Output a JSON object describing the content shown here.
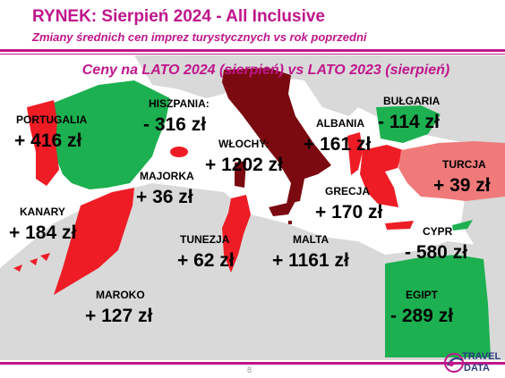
{
  "header": {
    "title": "RYNEK: Sierpień 2024 - All Inclusive",
    "subtitle": "Zmiany średnich cen imprez turystycznych vs rok poprzedni"
  },
  "map_title": "Ceny na LATO 2024 (sierpień) vs  LATO 2023 (sierpień)",
  "colors": {
    "brand": "#c0168c",
    "increase_strong": "#ee1c25",
    "increase_extreme": "#7a0a10",
    "decrease": "#1cb050",
    "increase_mild": "#f07a7a",
    "sea": "#ffffff",
    "land": "#d9d9d9"
  },
  "destinations": [
    {
      "name": "PORTUGALIA",
      "change": "+ 416 zł"
    },
    {
      "name": "HISZPANIA:",
      "change": "- 316 zł"
    },
    {
      "name": "WŁOCHY:",
      "change": "+ 1202 zł"
    },
    {
      "name": "ALBANIA",
      "change": "+ 161 zł"
    },
    {
      "name": "BUŁGARIA",
      "change": "- 114 zł"
    },
    {
      "name": "TURCJA",
      "change": "+ 39 zł"
    },
    {
      "name": "MAJORKA",
      "change": "+ 36 zł"
    },
    {
      "name": "GRECJA",
      "change": "+ 170 zł"
    },
    {
      "name": "KANARY",
      "change": "+ 184 zł"
    },
    {
      "name": "CYPR",
      "change": "- 580 zł"
    },
    {
      "name": "TUNEZJA",
      "change": "+ 62 zł"
    },
    {
      "name": "MALTA",
      "change": "+ 1161 zł"
    },
    {
      "name": "MAROKO",
      "change": "+ 127 zł"
    },
    {
      "name": "EGIPT",
      "change": "- 289 zł"
    }
  ],
  "footer": {
    "page_number": "8",
    "logo_line1": "TRAVEL",
    "logo_line2": "DATA"
  },
  "icons": {
    "logo": "travel-data-globe-logo"
  }
}
